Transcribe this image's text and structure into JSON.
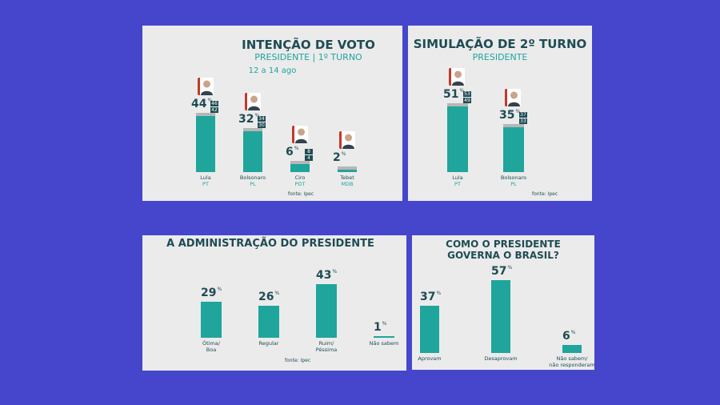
{
  "charts": {
    "first_round": {
      "title": "INTENÇÃO DE VOTO",
      "subtitle": "PRESIDENTE | 1º TURNO",
      "date": "12 a 14 ago",
      "source": "fonte: Ipec",
      "candidates": [
        {
          "name": "Lula",
          "party": "PT",
          "value_label": "44",
          "hi": "46",
          "lo": "42"
        },
        {
          "name": "Bolsonaro",
          "party": "PL",
          "value_label": "32",
          "hi": "34",
          "lo": "30"
        },
        {
          "name": "Ciro",
          "party": "PDT",
          "value_label": "6",
          "hi": "8",
          "lo": "4"
        },
        {
          "name": "Tebet",
          "party": "MDB",
          "value_label": "2"
        }
      ]
    },
    "second_round": {
      "title": "SIMULAÇÃO DE 2º TURNO",
      "subtitle": "PRESIDENTE",
      "source": "fonte: Ipec",
      "candidates": [
        {
          "name": "Lula",
          "party": "PT",
          "value_label": "51",
          "hi": "53",
          "lo": "49"
        },
        {
          "name": "Bolsonaro",
          "party": "PL",
          "value_label": "35",
          "hi": "37",
          "lo": "33"
        }
      ]
    },
    "administration": {
      "title": "A ADMINISTRAÇÃO DO PRESIDENTE",
      "source": "fonte: Ipec",
      "items": [
        {
          "label_lines": [
            "Ótima/",
            "Boa"
          ],
          "value_label": "29"
        },
        {
          "label_lines": [
            "Regular"
          ],
          "value_label": "26"
        },
        {
          "label_lines": [
            "Ruim/",
            "Péssima"
          ],
          "value_label": "43"
        },
        {
          "label_lines": [
            "Não sabem"
          ],
          "value_label": "1"
        }
      ]
    },
    "governs": {
      "title_lines": [
        "COMO O PRESIDENTE",
        "GOVERNA O BRASIL?"
      ],
      "items": [
        {
          "label_lines": [
            "Aprovam"
          ],
          "value_label": "37"
        },
        {
          "label_lines": [
            "Desaprovam"
          ],
          "value_label": "57"
        },
        {
          "label_lines": [
            "Não sabem/",
            "não responderam"
          ],
          "value_label": "6"
        }
      ]
    }
  },
  "chart_data": [
    {
      "type": "bar",
      "title": "INTENÇÃO DE VOTO",
      "subtitle": "PRESIDENTE | 1º TURNO",
      "unit": "%",
      "categories": [
        "Lula",
        "Bolsonaro",
        "Ciro",
        "Tebet"
      ],
      "values": [
        44,
        32,
        6,
        2
      ],
      "range_high": [
        46,
        34,
        8,
        null
      ],
      "range_low": [
        42,
        30,
        4,
        null
      ],
      "parties": [
        "PT",
        "PL",
        "PDT",
        "MDB"
      ],
      "ylim": [
        0,
        60
      ]
    },
    {
      "type": "bar",
      "title": "SIMULAÇÃO DE 2º TURNO",
      "subtitle": "PRESIDENTE",
      "unit": "%",
      "categories": [
        "Lula",
        "Bolsonaro"
      ],
      "values": [
        51,
        35
      ],
      "range_high": [
        53,
        37
      ],
      "range_low": [
        49,
        33
      ],
      "parties": [
        "PT",
        "PL"
      ],
      "ylim": [
        0,
        60
      ]
    },
    {
      "type": "bar",
      "title": "A ADMINISTRAÇÃO DO PRESIDENTE",
      "unit": "%",
      "categories": [
        "Ótima/Boa",
        "Regular",
        "Ruim/Péssima",
        "Não sabem"
      ],
      "values": [
        29,
        26,
        43,
        1
      ],
      "ylim": [
        0,
        60
      ]
    },
    {
      "type": "bar",
      "title": "COMO O PRESIDENTE GOVERNA O BRASIL?",
      "unit": "%",
      "categories": [
        "Aprovam",
        "Desaprovam",
        "Não sabem/não responderam"
      ],
      "values": [
        37,
        57,
        6
      ],
      "ylim": [
        0,
        60
      ]
    }
  ],
  "colors": {
    "background": "#4646cc",
    "panel": "#ebebeb",
    "bar": "#1fa59b",
    "text_dark": "#1e4c54",
    "accent": "#1fa59b",
    "photo_border": "#c0392b"
  }
}
